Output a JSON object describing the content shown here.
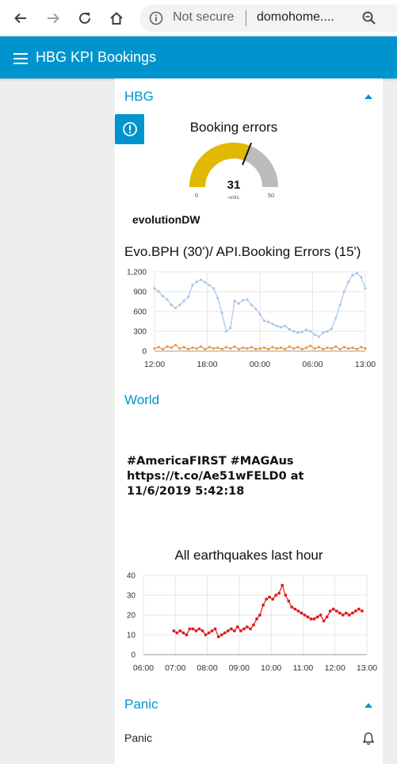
{
  "browser": {
    "security_label": "Not secure",
    "url": "domohome...."
  },
  "header": {
    "title": "HBG KPI Bookings"
  },
  "groups": {
    "hbg": {
      "title": "HBG"
    },
    "world": {
      "title": "World"
    },
    "panic": {
      "title": "Panic"
    }
  },
  "gauge": {
    "title": "Booking errors",
    "value": 31,
    "min": 0,
    "max": 50,
    "units": "units",
    "fill_color": "#e0b900",
    "track_color": "#bcbcbc"
  },
  "evolution_label": "evolutionDW",
  "tweet_text": "#AmericaFIRST #MAGAus https://t.co/Ae51wFELD0 at 11/6/2019 5:42:18",
  "panic": {
    "label": "Panic",
    "icon": "bell-icon"
  },
  "chart_data": [
    {
      "type": "line",
      "title": "Evo.BPH (30')/ API.Booking Errors (15')",
      "x_ticks": [
        "12:00",
        "18:00",
        "00:00",
        "06:00",
        "13:00"
      ],
      "y_ticks": [
        "1,200",
        "900",
        "600",
        "300",
        "0"
      ],
      "ylim": [
        0,
        1200
      ],
      "grid": true,
      "series": [
        {
          "color": "#a9c6e8",
          "x": [
            0,
            0.5,
            1,
            1.5,
            2,
            2.5,
            3,
            3.5,
            4,
            4.5,
            5,
            5.5,
            6,
            6.5,
            7,
            7.5,
            8,
            8.5,
            9,
            9.5,
            10,
            10.5,
            11,
            11.5,
            12,
            12.5,
            13,
            13.5,
            14,
            14.5,
            15,
            15.5,
            16,
            16.5,
            17,
            17.5,
            18,
            18.5,
            19,
            19.5,
            20,
            20.5,
            21,
            21.5,
            22,
            22.5,
            23,
            23.5,
            24,
            24.5,
            25
          ],
          "values": [
            950,
            900,
            830,
            780,
            700,
            650,
            700,
            760,
            820,
            1000,
            1050,
            1080,
            1040,
            1000,
            950,
            800,
            580,
            300,
            350,
            760,
            720,
            770,
            780,
            700,
            640,
            560,
            460,
            440,
            410,
            380,
            360,
            380,
            330,
            300,
            280,
            290,
            320,
            300,
            250,
            220,
            280,
            300,
            340,
            500,
            700,
            900,
            1050,
            1150,
            1180,
            1120,
            950
          ]
        },
        {
          "color": "#f09640",
          "x": [
            0,
            0.5,
            1,
            1.5,
            2,
            2.5,
            3,
            3.5,
            4,
            4.5,
            5,
            5.5,
            6,
            6.5,
            7,
            7.5,
            8,
            8.5,
            9,
            9.5,
            10,
            10.5,
            11,
            11.5,
            12,
            12.5,
            13,
            13.5,
            14,
            14.5,
            15,
            15.5,
            16,
            16.5,
            17,
            17.5,
            18,
            18.5,
            19,
            19.5,
            20,
            20.5,
            21,
            21.5,
            22,
            22.5,
            23,
            23.5,
            24,
            24.5,
            25
          ],
          "values": [
            40,
            60,
            30,
            70,
            50,
            90,
            40,
            60,
            30,
            50,
            40,
            70,
            30,
            60,
            40,
            50,
            30,
            60,
            40,
            70,
            30,
            50,
            40,
            60,
            30,
            40,
            50,
            30,
            60,
            40,
            50,
            30,
            70,
            40,
            60,
            30,
            50,
            80,
            40,
            60,
            30,
            50,
            40,
            70,
            30,
            60,
            40,
            50,
            30,
            60,
            40
          ]
        }
      ]
    },
    {
      "type": "line",
      "title": "All earthquakes last hour",
      "x_ticks": [
        "06:00",
        "07:00",
        "08:00",
        "09:00",
        "10:00",
        "11:00",
        "12:00",
        "13:00"
      ],
      "y_ticks": [
        "40",
        "30",
        "20",
        "10",
        "0"
      ],
      "xlim": [
        0,
        7
      ],
      "ylim": [
        0,
        40
      ],
      "grid": true,
      "series": [
        {
          "color": "#e01b1b",
          "x": [
            0.95,
            1.05,
            1.15,
            1.25,
            1.35,
            1.45,
            1.55,
            1.65,
            1.75,
            1.85,
            1.95,
            2.05,
            2.15,
            2.25,
            2.35,
            2.45,
            2.55,
            2.65,
            2.75,
            2.85,
            2.95,
            3.05,
            3.15,
            3.25,
            3.35,
            3.45,
            3.55,
            3.65,
            3.75,
            3.85,
            3.95,
            4.05,
            4.15,
            4.25,
            4.35,
            4.45,
            4.55,
            4.65,
            4.75,
            4.85,
            4.95,
            5.05,
            5.15,
            5.25,
            5.35,
            5.45,
            5.55,
            5.65,
            5.75,
            5.85,
            5.95,
            6.05,
            6.15,
            6.25,
            6.35,
            6.45,
            6.55,
            6.65,
            6.75,
            6.85
          ],
          "values": [
            12,
            11,
            12,
            11,
            10,
            13,
            13,
            12,
            13,
            12,
            10,
            11,
            12,
            13,
            9,
            10,
            11,
            12,
            13,
            12,
            14,
            12,
            13,
            14,
            13,
            15,
            18,
            20,
            25,
            28,
            29,
            28,
            30,
            31,
            35,
            30,
            27,
            24,
            23,
            22,
            21,
            20,
            19,
            18,
            18,
            19,
            20,
            17,
            19,
            22,
            23,
            22,
            21,
            20,
            21,
            20,
            21,
            22,
            23,
            22
          ]
        }
      ]
    }
  ]
}
